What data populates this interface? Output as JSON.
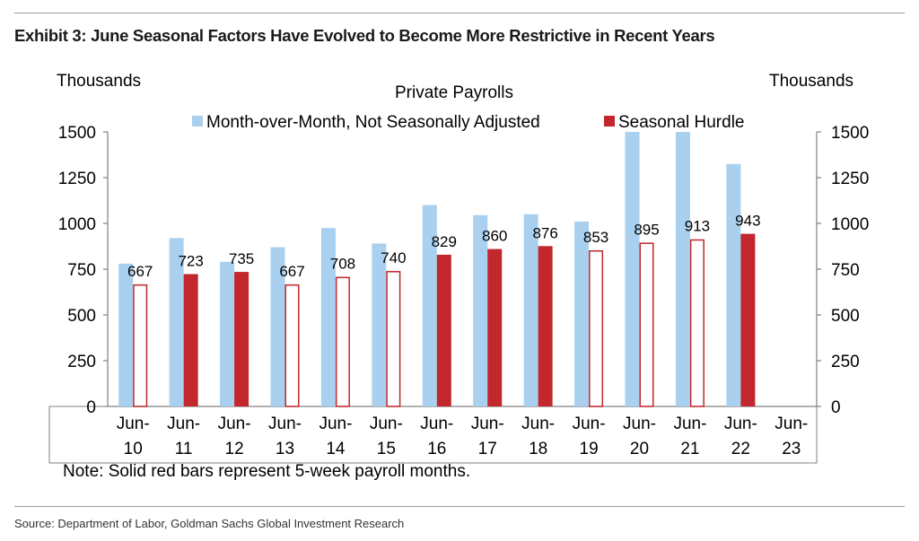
{
  "exhibit_title": "Exhibit 3: June Seasonal Factors Have Evolved to Become More Restrictive in Recent Years",
  "source": "Source: Department of Labor, Goldman Sachs Global Investment Research",
  "note": "Note: Solid red bars represent 5-week payroll months.",
  "colors": {
    "nsa": "#a9d0ee",
    "hurdle": "#c1272d",
    "axis": "#808080"
  },
  "chart_data": {
    "type": "bar",
    "title": "Private Payrolls",
    "ylabel_left": "Thousands",
    "ylabel_right": "Thousands",
    "ylim": [
      0,
      1500
    ],
    "yticks": [
      0,
      250,
      500,
      750,
      1000,
      1250,
      1500
    ],
    "categories": [
      [
        "Jun-",
        "10"
      ],
      [
        "Jun-",
        "11"
      ],
      [
        "Jun-",
        "12"
      ],
      [
        "Jun-",
        "13"
      ],
      [
        "Jun-",
        "14"
      ],
      [
        "Jun-",
        "15"
      ],
      [
        "Jun-",
        "16"
      ],
      [
        "Jun-",
        "17"
      ],
      [
        "Jun-",
        "18"
      ],
      [
        "Jun-",
        "19"
      ],
      [
        "Jun-",
        "20"
      ],
      [
        "Jun-",
        "21"
      ],
      [
        "Jun-",
        "22"
      ],
      [
        "Jun-",
        "23"
      ]
    ],
    "series": [
      {
        "name": "Month-over-Month, Not Seasonally Adjusted",
        "color": "#a9d0ee",
        "values": [
          780,
          920,
          790,
          870,
          975,
          890,
          1100,
          1045,
          1050,
          1010,
          1500,
          1500,
          1325,
          null
        ]
      },
      {
        "name": "Seasonal Hurdle",
        "color": "#c1272d",
        "values": [
          667,
          723,
          735,
          667,
          708,
          740,
          829,
          860,
          876,
          853,
          895,
          913,
          943,
          null
        ],
        "solid": [
          false,
          true,
          true,
          false,
          false,
          false,
          true,
          true,
          true,
          false,
          false,
          false,
          true,
          false
        ]
      }
    ],
    "legend_position": "top",
    "grid": false
  }
}
